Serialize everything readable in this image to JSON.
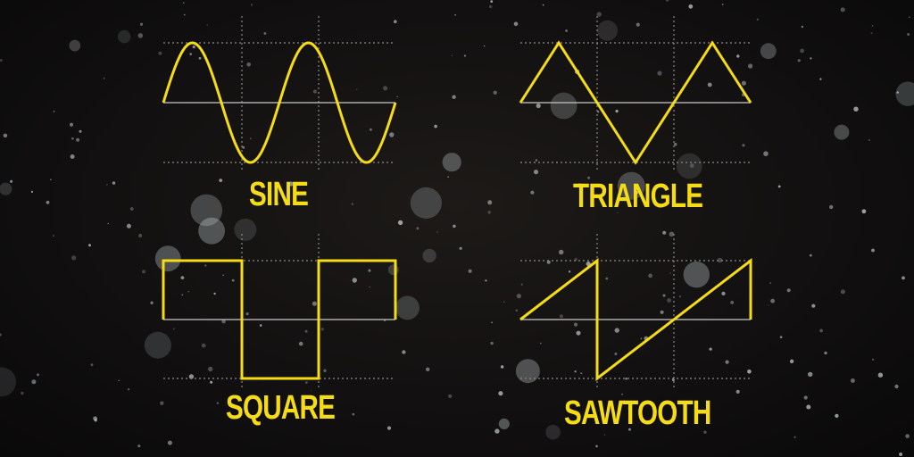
{
  "colors": {
    "accent": "#f5dc14",
    "background": "#121010",
    "axis": "#bdbdbd"
  },
  "waves": [
    {
      "id": "sine",
      "label": "SINE",
      "shape": "sine"
    },
    {
      "id": "triangle",
      "label": "TRIANGLE",
      "shape": "triangle"
    },
    {
      "id": "square",
      "label": "SQUARE",
      "shape": "square"
    },
    {
      "id": "sawtooth",
      "label": "SAWTOOTH",
      "shape": "sawtooth"
    }
  ]
}
